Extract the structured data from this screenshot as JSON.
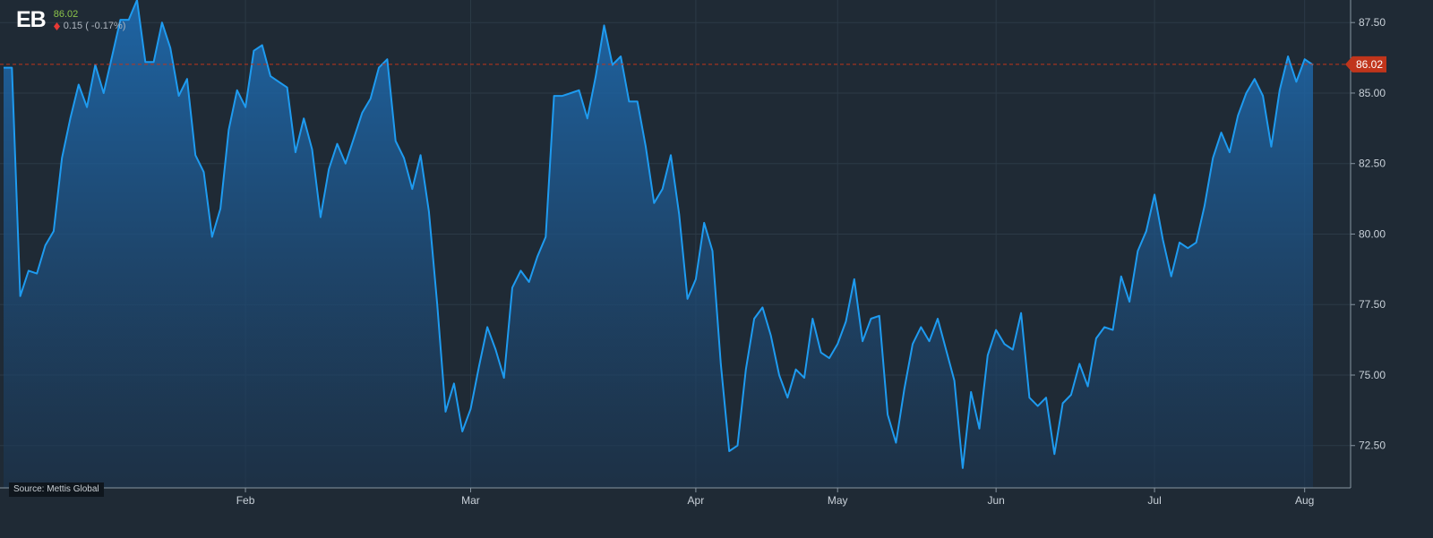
{
  "ticker": {
    "symbol": "EB",
    "price": "86.02",
    "change": "0.15 ( -0.17%)"
  },
  "source": "Source: Mettis Global",
  "colors": {
    "background": "#1f2a35",
    "line": "#1e9bf0",
    "price_positive": "#8bc34a",
    "down_marker": "#e53935",
    "last_price_tag": "#c0351b"
  },
  "chart_data": {
    "type": "area",
    "title": "",
    "xlabel": "",
    "ylabel": "",
    "ylim": [
      71,
      88.3
    ],
    "yticks": [
      "72.50",
      "75.00",
      "77.50",
      "80.00",
      "82.50",
      "85.00",
      "87.50"
    ],
    "xticks": [
      "Feb",
      "Mar",
      "Apr",
      "May",
      "Jun",
      "Jul",
      "Aug"
    ],
    "last_price": "86.02",
    "grid": true,
    "series": [
      {
        "values": [
          85.9,
          85.9,
          77.8,
          78.7,
          78.6,
          79.6,
          80.1,
          82.7,
          84.1,
          85.3,
          84.5,
          86,
          85,
          86.3,
          87.6,
          87.6,
          88.3,
          86.1,
          86.1,
          87.5,
          86.6,
          84.9,
          85.5,
          82.8,
          82.2,
          79.9,
          80.9,
          83.7,
          85.1,
          84.5,
          86.5,
          86.7,
          85.6,
          85.4,
          85.2,
          82.9,
          84.1,
          83,
          80.6,
          82.3,
          83.2,
          82.5,
          83.4,
          84.3,
          84.8,
          85.9,
          86.2,
          83.3,
          82.7,
          81.6,
          82.8,
          80.8,
          77.5,
          73.7,
          74.7,
          73,
          73.8,
          75.3,
          76.7,
          75.9,
          74.9,
          78.1,
          78.7,
          78.3,
          79.2,
          79.9,
          84.9,
          84.9,
          85,
          85.1,
          84.1,
          85.6,
          87.4,
          86,
          86.3,
          84.7,
          84.7,
          83.1,
          81.1,
          81.6,
          82.8,
          80.7,
          77.7,
          78.4,
          80.4,
          79.4,
          75.4,
          72.3,
          72.5,
          75.2,
          77,
          77.4,
          76.4,
          75,
          74.2,
          75.2,
          74.9,
          77,
          75.8,
          75.6,
          76.1,
          76.9,
          78.4,
          76.2,
          77,
          77.1,
          73.6,
          72.6,
          74.5,
          76.1,
          76.7,
          76.2,
          77,
          75.9,
          74.8,
          71.7,
          74.4,
          73.1,
          75.7,
          76.6,
          76.1,
          75.9,
          77.2,
          74.2,
          73.9,
          74.2,
          72.2,
          74,
          74.3,
          75.4,
          74.6,
          76.3,
          76.7,
          76.6,
          78.5,
          77.6,
          79.4,
          80.1,
          81.4,
          79.8,
          78.5,
          79.7,
          79.5,
          79.7,
          81,
          82.7,
          83.6,
          82.9,
          84.2,
          85,
          85.5,
          84.9,
          83.1,
          85.1,
          86.3,
          85.4,
          86.2,
          86
        ]
      }
    ]
  }
}
